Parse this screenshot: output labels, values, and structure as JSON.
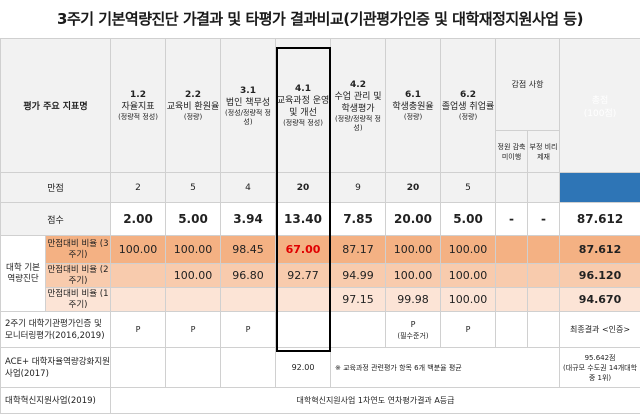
{
  "title": "3주기 기본역량진단 가결과 및 타평가 결과비교(기관평가인증 및 대학재정지원사업 등)",
  "header": {
    "row_label": "평가 주요 지표명",
    "cols": [
      {
        "code": "1.2",
        "name": "자율지표",
        "sub": "(정량적 정성)"
      },
      {
        "code": "2.2",
        "name": "교육비 환원율",
        "sub": "(정량)"
      },
      {
        "code": "3.1",
        "name": "법인 책무성",
        "sub": "(정성/정량적 정성)"
      },
      {
        "code": "4.1",
        "name": "교육과정 운영 및 개선",
        "sub": "(정량적 정성)"
      },
      {
        "code": "4.2",
        "name": "수업 관리 및 학생평가",
        "sub": "(정량/정량적 정성)"
      },
      {
        "code": "6.1",
        "name": "학생충원율",
        "sub": "(정량)"
      },
      {
        "code": "6.2",
        "name": "졸업생 취업률",
        "sub": "(정량)"
      }
    ],
    "gamjeom": "감점 사항",
    "gamjeom_sub1": "정원 감축 미이행",
    "gamjeom_sub2": "부정 비리 제재",
    "total": "총점",
    "total_sub": "(100점)"
  },
  "max_row": {
    "label": "만점",
    "values": [
      "2",
      "5",
      "4",
      "20",
      "9",
      "20",
      "5"
    ],
    "total": ""
  },
  "score_row": {
    "label": "점수",
    "values": [
      "2.00",
      "5.00",
      "3.94",
      "13.40",
      "7.85",
      "20.00",
      "5.00"
    ],
    "g1": "-",
    "g2": "-",
    "total": "87.612"
  },
  "diag_label": "대학 기본 역량진단",
  "ratio_rows": [
    {
      "label": "만점대비 비율 (3주기)",
      "values": [
        "100.00",
        "100.00",
        "98.45",
        "67.00",
        "87.17",
        "100.00",
        "100.00"
      ],
      "total": "87.612"
    },
    {
      "label": "만점대비 비율 (2주기)",
      "values": [
        "",
        "100.00",
        "96.80",
        "92.77",
        "94.99",
        "100.00",
        "100.00"
      ],
      "total": "96.120"
    },
    {
      "label": "만점대비 비율 (1주기)",
      "values": [
        "",
        "",
        "",
        "",
        "97.15",
        "99.98",
        "100.00"
      ],
      "total": "94.670"
    }
  ],
  "bottom": {
    "row1": {
      "label": "2주기 대학기관평가인증 및 모니터링평가(2016,2019)",
      "p1": "P",
      "p2": "P",
      "p3": "P",
      "p6": "P",
      "p6_sub": "(필수준거)",
      "p7": "P",
      "total": "최종결과 <인증>"
    },
    "row2": {
      "label": "ACE+ 대학자율역량강화지원사업(2017)",
      "v4": "92.00",
      "note": "※ 교육과정 관련평가 항목 6개 백분율 평균",
      "total1": "95.642점",
      "total2": "(대규모 수도권 14개대학 중 1위)"
    },
    "row3": {
      "label": "대학혁신지원사업(2019)",
      "note": "대학혁신지원사업 1차연도 연차평가결과 A등급"
    }
  }
}
